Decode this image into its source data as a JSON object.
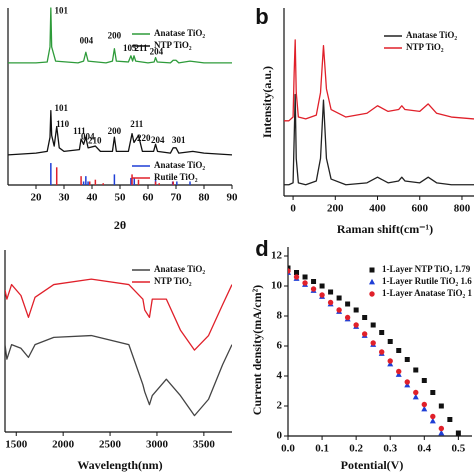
{
  "chart_data": [
    {
      "type": "line",
      "xlabel": "2θ",
      "xlim": [
        10,
        90
      ],
      "xticks": [
        20,
        30,
        40,
        50,
        60,
        70,
        80,
        90
      ],
      "ylim": [
        0,
        100
      ],
      "legend": "upper right",
      "reference_legend": "lower right",
      "series": [
        {
          "name": "Anatase TiO₂",
          "color": "#2e9b3a",
          "x": [
            10,
            20,
            24,
            25,
            25.3,
            25.6,
            27,
            35,
            37,
            37.8,
            38.6,
            45,
            47.3,
            48,
            48.7,
            53,
            53.9,
            54.5,
            55,
            55.6,
            60,
            62.2,
            62.7,
            63.3,
            68,
            69,
            70,
            71,
            75,
            80,
            90
          ],
          "values": [
            69,
            69,
            69.5,
            78,
            100,
            78,
            70,
            69,
            70,
            75,
            70,
            69,
            70,
            77,
            70,
            69.5,
            73,
            70,
            73,
            70,
            69,
            69.5,
            72,
            69.5,
            69,
            70.5,
            70.5,
            69,
            70,
            69,
            69
          ]
        },
        {
          "name": "NTP TiO₂",
          "color": "#111111",
          "x": [
            10,
            20,
            24,
            25,
            25.3,
            25.6,
            26.5,
            27.4,
            28.3,
            30,
            35.5,
            36.1,
            37,
            37.8,
            38.6,
            41.2,
            43,
            47.3,
            48,
            48.7,
            53,
            54.3,
            55,
            56.6,
            58,
            62,
            62.7,
            63.4,
            68,
            69,
            70,
            71,
            76,
            80,
            90
          ],
          "values": [
            17,
            18,
            19,
            27,
            42,
            28,
            22,
            33,
            21,
            19,
            20,
            26,
            23,
            27,
            21,
            22,
            19,
            19,
            27,
            19,
            19,
            29,
            24,
            28,
            19,
            19,
            23,
            19,
            18,
            21,
            21,
            18,
            19,
            18,
            17
          ]
        }
      ],
      "references": [
        {
          "name": "Anatase TiO₂",
          "color": "#1f3fd6",
          "x": [
            25.3,
            37.0,
            37.8,
            38.6,
            48.0,
            53.9,
            55.1,
            62.7,
            68.8,
            70.3,
            75.0
          ],
          "values": [
            12.4,
            2,
            5,
            2,
            6,
            4,
            4,
            3,
            2,
            2,
            2
          ]
        },
        {
          "name": "Rutile TiO₂",
          "color": "#e0202a",
          "x": [
            27.4,
            36.1,
            39.2,
            41.2,
            44.0,
            54.3,
            56.6,
            62.7,
            64.0,
            69.0
          ],
          "values": [
            10,
            5,
            2,
            3,
            1,
            6,
            3,
            2,
            1,
            2
          ]
        }
      ],
      "annotations": [
        {
          "text": "101",
          "x": 29,
          "y": 98
        },
        {
          "text": "004",
          "x": 38,
          "y": 81
        },
        {
          "text": "200",
          "x": 48,
          "y": 84
        },
        {
          "text": "105",
          "x": 53.5,
          "y": 77
        },
        {
          "text": "211",
          "x": 57.5,
          "y": 77
        },
        {
          "text": "204",
          "x": 63,
          "y": 75
        },
        {
          "text": "101",
          "x": 29,
          "y": 43
        },
        {
          "text": "110",
          "x": 29.5,
          "y": 34
        },
        {
          "text": "111",
          "x": 35.5,
          "y": 30
        },
        {
          "text": "004",
          "x": 38.5,
          "y": 27
        },
        {
          "text": "210",
          "x": 41,
          "y": 24.5
        },
        {
          "text": "200",
          "x": 48,
          "y": 30
        },
        {
          "text": "211",
          "x": 56,
          "y": 34
        },
        {
          "text": "220",
          "x": 58.5,
          "y": 26
        },
        {
          "text": "204",
          "x": 63.5,
          "y": 25
        },
        {
          "text": "301",
          "x": 71,
          "y": 25
        }
      ]
    },
    {
      "type": "line",
      "panel_label": "b",
      "xlabel": "Raman shift(cm⁻¹)",
      "ylabel": "Intensity(a.u.)",
      "xlim": [
        -43,
        857
      ],
      "xticks": [
        0,
        200,
        400,
        600,
        800
      ],
      "ylim": [
        0,
        100
      ],
      "legend": "upper right",
      "x": [
        -43,
        -20,
        0,
        5,
        10,
        15,
        25,
        60,
        110,
        130,
        144,
        158,
        180,
        250,
        350,
        400,
        450,
        500,
        515,
        530,
        600,
        640,
        680,
        750,
        857
      ],
      "series": [
        {
          "name": "Anatase TiO₂",
          "color": "#222222",
          "values": [
            6,
            6,
            7,
            30,
            54,
            20,
            7,
            6,
            8,
            20,
            51,
            20,
            9,
            6,
            7,
            10,
            7,
            8,
            10,
            8,
            7,
            10,
            7,
            6,
            6
          ]
        },
        {
          "name": "NTP TiO₂",
          "color": "#e0202a",
          "values": [
            40,
            40,
            42,
            65,
            83,
            55,
            42,
            41,
            43,
            55,
            80,
            57,
            46,
            42,
            44,
            48,
            45,
            46,
            48,
            46,
            45,
            49,
            44,
            42,
            41
          ]
        }
      ]
    },
    {
      "type": "line",
      "xlabel": "Wavelength(nm)",
      "xlim": [
        1380,
        3800
      ],
      "xticks": [
        1500,
        2000,
        2500,
        3000,
        3500
      ],
      "ylim": [
        0,
        100
      ],
      "legend": "upper right",
      "x": [
        1380,
        1400,
        1450,
        1550,
        1630,
        1700,
        1900,
        2300,
        2700,
        2850,
        2870,
        2920,
        2950,
        3100,
        3250,
        3400,
        3550,
        3700,
        3800
      ],
      "series": [
        {
          "name": "Anatase TiO₂",
          "color": "#444444",
          "values": [
            48,
            40,
            48,
            46,
            41,
            48,
            52,
            53,
            48,
            26,
            22,
            15,
            20,
            29,
            20,
            9,
            18,
            37,
            48
          ]
        },
        {
          "name": "NTP TiO₂",
          "color": "#e0202a",
          "values": [
            78,
            73,
            81,
            75,
            63,
            74,
            81,
            84,
            81,
            73,
            67,
            63,
            73,
            73,
            56,
            45,
            53,
            70,
            81
          ]
        }
      ]
    },
    {
      "type": "scatter",
      "panel_label": "d",
      "xlabel": "Potential(V)",
      "ylabel": "Current density(mA/cm²)",
      "xlim": [
        0,
        0.54
      ],
      "xticks": [
        {
          "value": 0,
          "label": "0.0"
        },
        0.1,
        0.2,
        0.3,
        0.4,
        0.5
      ],
      "ylim": [
        0,
        12.6
      ],
      "yticks": [
        0,
        2,
        4,
        6,
        8,
        10,
        12
      ],
      "legend": "upper right",
      "series": [
        {
          "name": "1-Layer NTP TiO₂ 1.79",
          "color": "#111111",
          "marker": "square",
          "x": [
            0,
            0.025,
            0.05,
            0.075,
            0.1,
            0.125,
            0.15,
            0.175,
            0.2,
            0.225,
            0.25,
            0.275,
            0.3,
            0.325,
            0.35,
            0.375,
            0.4,
            0.425,
            0.45,
            0.475,
            0.5
          ],
          "values": [
            11.2,
            10.9,
            10.6,
            10.3,
            10.0,
            9.6,
            9.2,
            8.8,
            8.4,
            7.9,
            7.4,
            6.9,
            6.3,
            5.7,
            5.1,
            4.4,
            3.7,
            2.9,
            2.0,
            1.1,
            0.2
          ]
        },
        {
          "name": "1-Layer Rutile TiO₂ 1.6",
          "color": "#1f3fd6",
          "marker": "triangle",
          "x": [
            0,
            0.025,
            0.05,
            0.075,
            0.1,
            0.125,
            0.15,
            0.175,
            0.2,
            0.225,
            0.25,
            0.275,
            0.3,
            0.325,
            0.35,
            0.375,
            0.4,
            0.425,
            0.45
          ],
          "values": [
            10.9,
            10.5,
            10.1,
            9.7,
            9.3,
            8.8,
            8.3,
            7.8,
            7.3,
            6.7,
            6.1,
            5.5,
            4.8,
            4.1,
            3.4,
            2.6,
            1.8,
            1.0,
            0.2
          ]
        },
        {
          "name": "1-Layer Anatase TiO₂ 1",
          "color": "#e0202a",
          "marker": "circle",
          "x": [
            0,
            0.025,
            0.05,
            0.075,
            0.1,
            0.125,
            0.15,
            0.175,
            0.2,
            0.225,
            0.25,
            0.275,
            0.3,
            0.325,
            0.35,
            0.375,
            0.4,
            0.425,
            0.45
          ],
          "values": [
            11.0,
            10.6,
            10.2,
            9.8,
            9.4,
            8.9,
            8.4,
            7.9,
            7.4,
            6.8,
            6.2,
            5.6,
            5.0,
            4.3,
            3.6,
            2.9,
            2.1,
            1.3,
            0.5
          ]
        }
      ]
    }
  ]
}
